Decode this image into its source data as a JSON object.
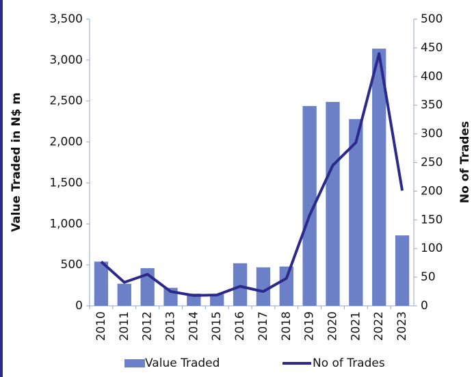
{
  "chart_data": {
    "type": "bar_line",
    "categories": [
      "2010",
      "2011",
      "2012",
      "2013",
      "2014",
      "2015",
      "2016",
      "2017",
      "2018",
      "2019",
      "2020",
      "2021",
      "2022",
      "2023"
    ],
    "series": [
      {
        "name": "Value Traded",
        "color": "#6c80c8",
        "type": "bar",
        "values": [
          540,
          270,
          460,
          220,
          150,
          140,
          520,
          470,
          480,
          2440,
          2490,
          2280,
          3140,
          860
        ]
      },
      {
        "name": "No of Trades",
        "color": "#2b2a8a",
        "type": "line",
        "axis": "y2",
        "values": [
          77,
          41,
          55,
          25,
          18,
          19,
          34,
          25,
          48,
          158,
          245,
          285,
          440,
          201
        ]
      }
    ],
    "y_label": "Value Traded in N$ m",
    "y2_label": "No of Trades",
    "ylim": [
      0,
      3500
    ],
    "yticks": [
      0,
      500,
      {
        "value": 1000,
        "label": "1,000"
      },
      {
        "value": 1500,
        "label": "1,500"
      },
      {
        "value": 2000,
        "label": "2,000"
      },
      {
        "value": 2500,
        "label": "2,500"
      },
      {
        "value": 3000,
        "label": "3,000"
      },
      {
        "value": 3500,
        "label": "3,500"
      }
    ],
    "y2lim": [
      0,
      500
    ],
    "y2ticks": [
      0,
      50,
      100,
      150,
      200,
      250,
      300,
      350,
      400,
      450,
      500
    ],
    "legend": "bottom"
  }
}
